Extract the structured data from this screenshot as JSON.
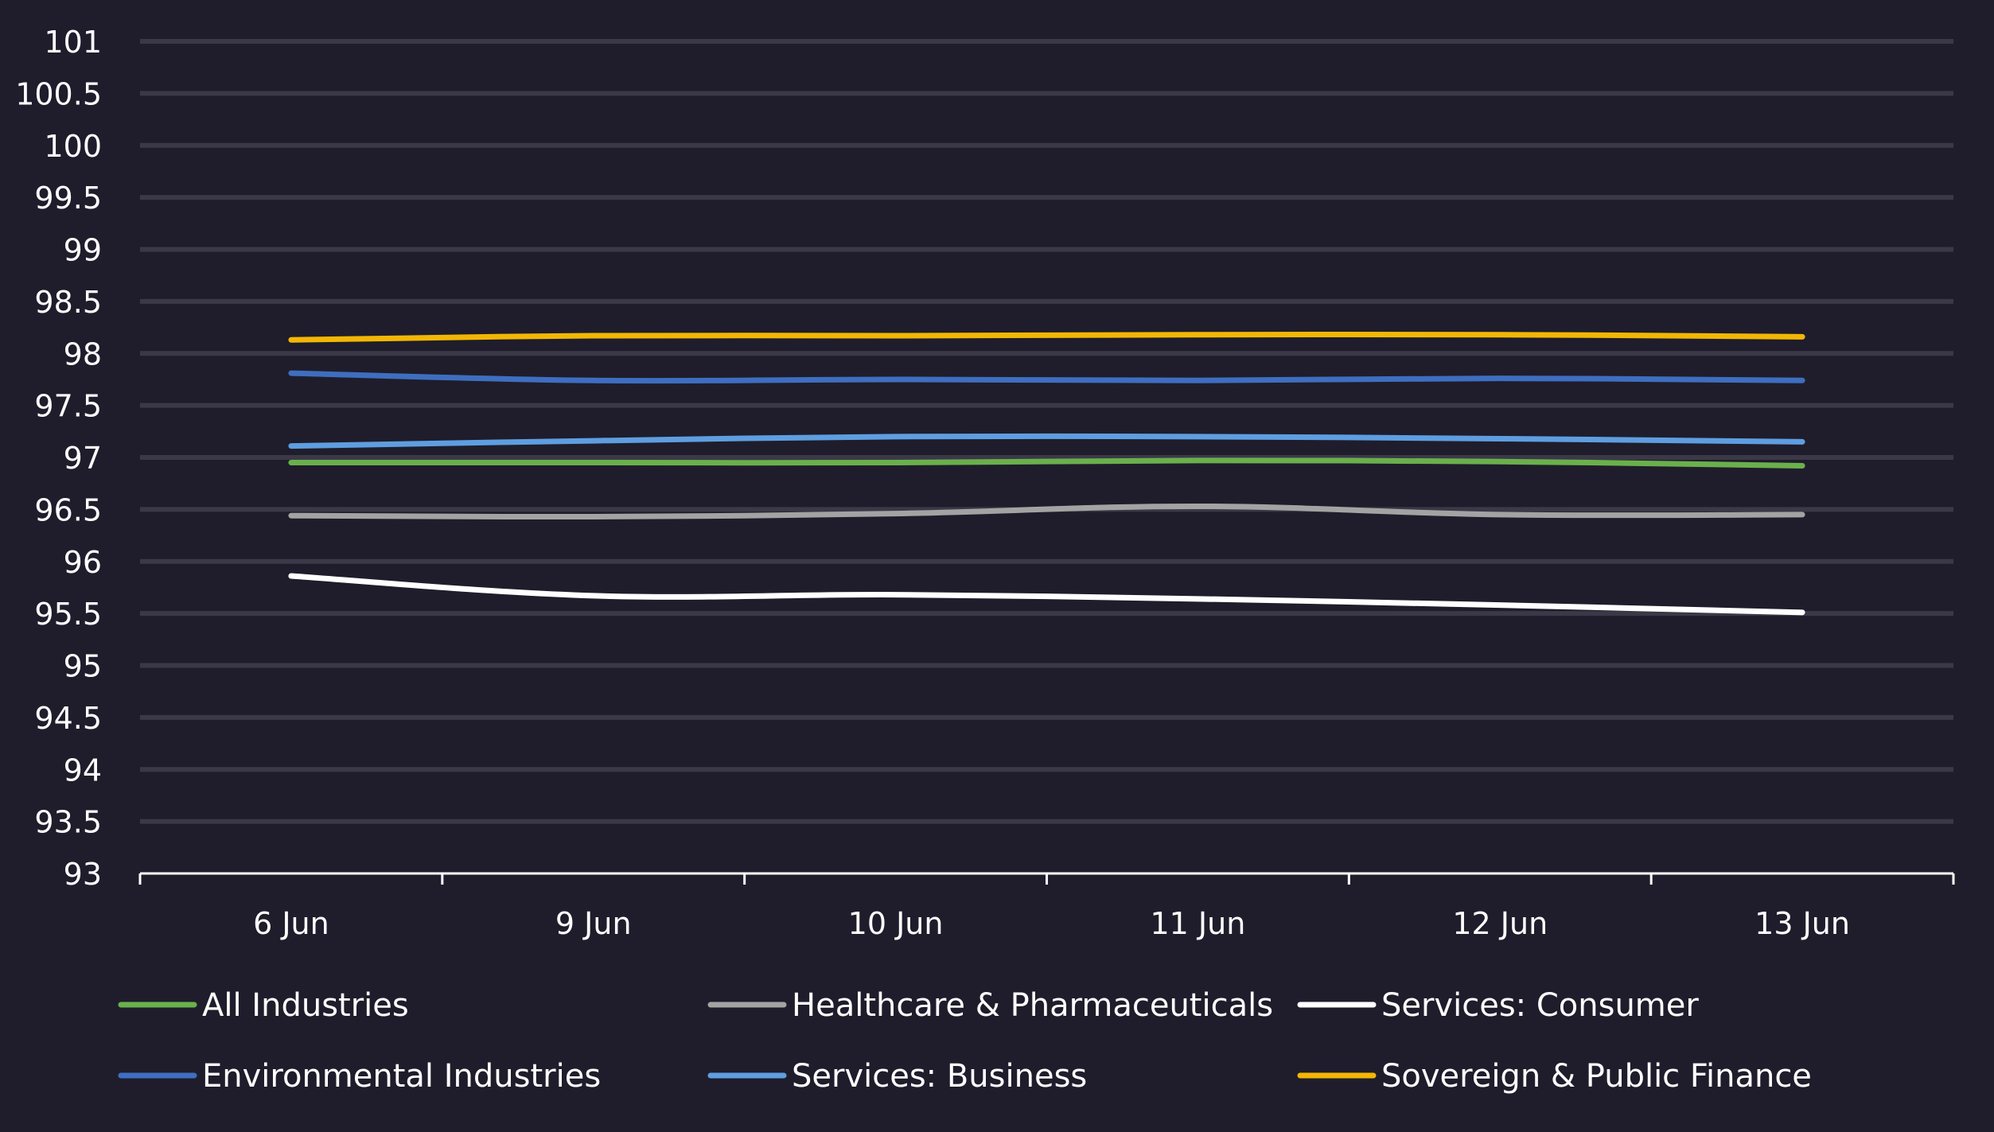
{
  "chart_data": {
    "type": "line",
    "title": "",
    "xlabel": "",
    "ylabel": "",
    "categories": [
      "6 Jun",
      "9 Jun",
      "10 Jun",
      "11 Jun",
      "12 Jun",
      "13 Jun"
    ],
    "ylim": [
      93,
      101
    ],
    "yticks": [
      "93",
      "93.5",
      "94",
      "94.5",
      "95",
      "95.5",
      "96",
      "96.5",
      "97",
      "97.5",
      "98",
      "98.5",
      "99",
      "99.5",
      "100",
      "100.5",
      "101"
    ],
    "grid": true,
    "legend_position": "bottom",
    "series": [
      {
        "name": "All Industries",
        "color": "#6ab04c",
        "values": [
          96.95,
          96.95,
          96.95,
          96.97,
          96.96,
          96.92
        ]
      },
      {
        "name": "Healthcare & Pharmaceuticals",
        "color": "#a3a3a3",
        "values": [
          96.44,
          96.43,
          96.46,
          96.53,
          96.45,
          96.45
        ]
      },
      {
        "name": "Services: Consumer",
        "color": "#ffffff",
        "values": [
          95.86,
          95.67,
          95.68,
          95.64,
          95.58,
          95.51
        ]
      },
      {
        "name": "Environmental Industries",
        "color": "#3e6ec0",
        "values": [
          97.81,
          97.74,
          97.75,
          97.74,
          97.76,
          97.74
        ]
      },
      {
        "name": "Services: Business",
        "color": "#5e9ee0",
        "values": [
          97.11,
          97.16,
          97.2,
          97.2,
          97.18,
          97.15
        ]
      },
      {
        "name": "Sovereign & Public Finance",
        "color": "#f2b705",
        "values": [
          98.13,
          98.17,
          98.17,
          98.18,
          98.18,
          98.16
        ]
      }
    ]
  }
}
